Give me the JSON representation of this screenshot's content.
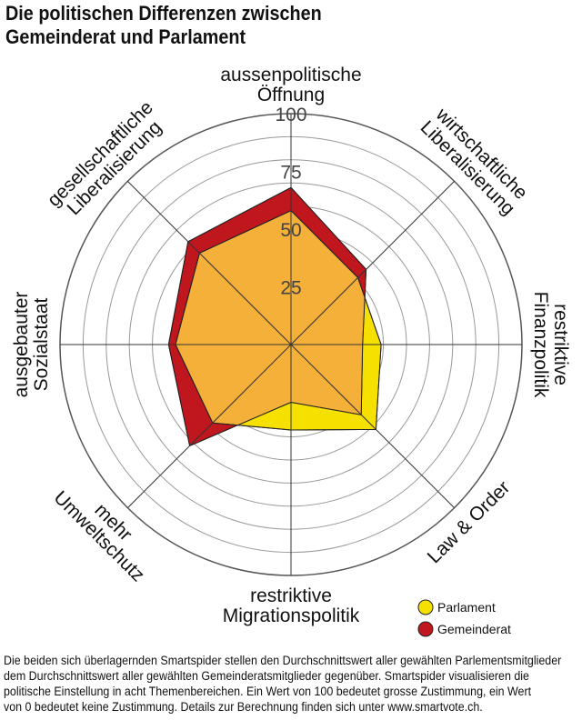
{
  "title_lines": [
    "Die politischen Differenzen zwischen",
    "Gemeinderat und Parlament"
  ],
  "caption_lines": [
    "Die beiden sich überlagernden Smartspider stellen den Durchschnittswert aller gewählten Parlementsmitglieder",
    "dem Durchschnittswert aller gewählten Gemeinderatsmitglieder gegenüber. Smartspider visualisieren die",
    "politische Einstellung in acht Themenbereichen. Ein Wert von 100 bedeutet grosse Zustimmung, ein Wert",
    "von 0 bedeutet keine Zustimmung. Details zur Berechnung finden sich unter www.smartvote.ch."
  ],
  "colors": {
    "parlament": "#f5e000",
    "gemeinderat": "#c0161e",
    "overlap": "#f5b03a",
    "grid": "#999999",
    "axis": "#333333"
  },
  "chart_data": {
    "type": "radar",
    "rmax": 100,
    "ticks": [
      25,
      50,
      75,
      100
    ],
    "axes": [
      {
        "key": "aussen",
        "label": [
          "aussenpolitische",
          "Öffnung"
        ]
      },
      {
        "key": "wirtschaft",
        "label": [
          "wirtschaftliche",
          "Liberalisierung"
        ]
      },
      {
        "key": "finanz",
        "label": [
          "restriktive",
          "Finanzpolitik"
        ]
      },
      {
        "key": "law",
        "label": [
          "Law & Order"
        ]
      },
      {
        "key": "migration",
        "label": [
          "restriktive",
          "Migrationspolitik"
        ]
      },
      {
        "key": "umwelt",
        "label": [
          "mehr",
          "Umweltschutz"
        ]
      },
      {
        "key": "sozial",
        "label": [
          "ausgebauter",
          "Sozialstaat"
        ]
      },
      {
        "key": "gesell",
        "label": [
          "gesellschaftliche",
          "Liberalisierung"
        ]
      }
    ],
    "series": [
      {
        "name": "Parlament",
        "color": "#f5e000",
        "values": [
          58,
          41,
          39,
          52,
          37,
          48,
          50,
          56
        ]
      },
      {
        "name": "Gemeinderat",
        "color": "#c0161e",
        "values": [
          68,
          46,
          31,
          43,
          25,
          62,
          53,
          63
        ]
      }
    ],
    "legend": [
      "Parlament",
      "Gemeinderat"
    ],
    "legend_position": "bottom-right"
  }
}
